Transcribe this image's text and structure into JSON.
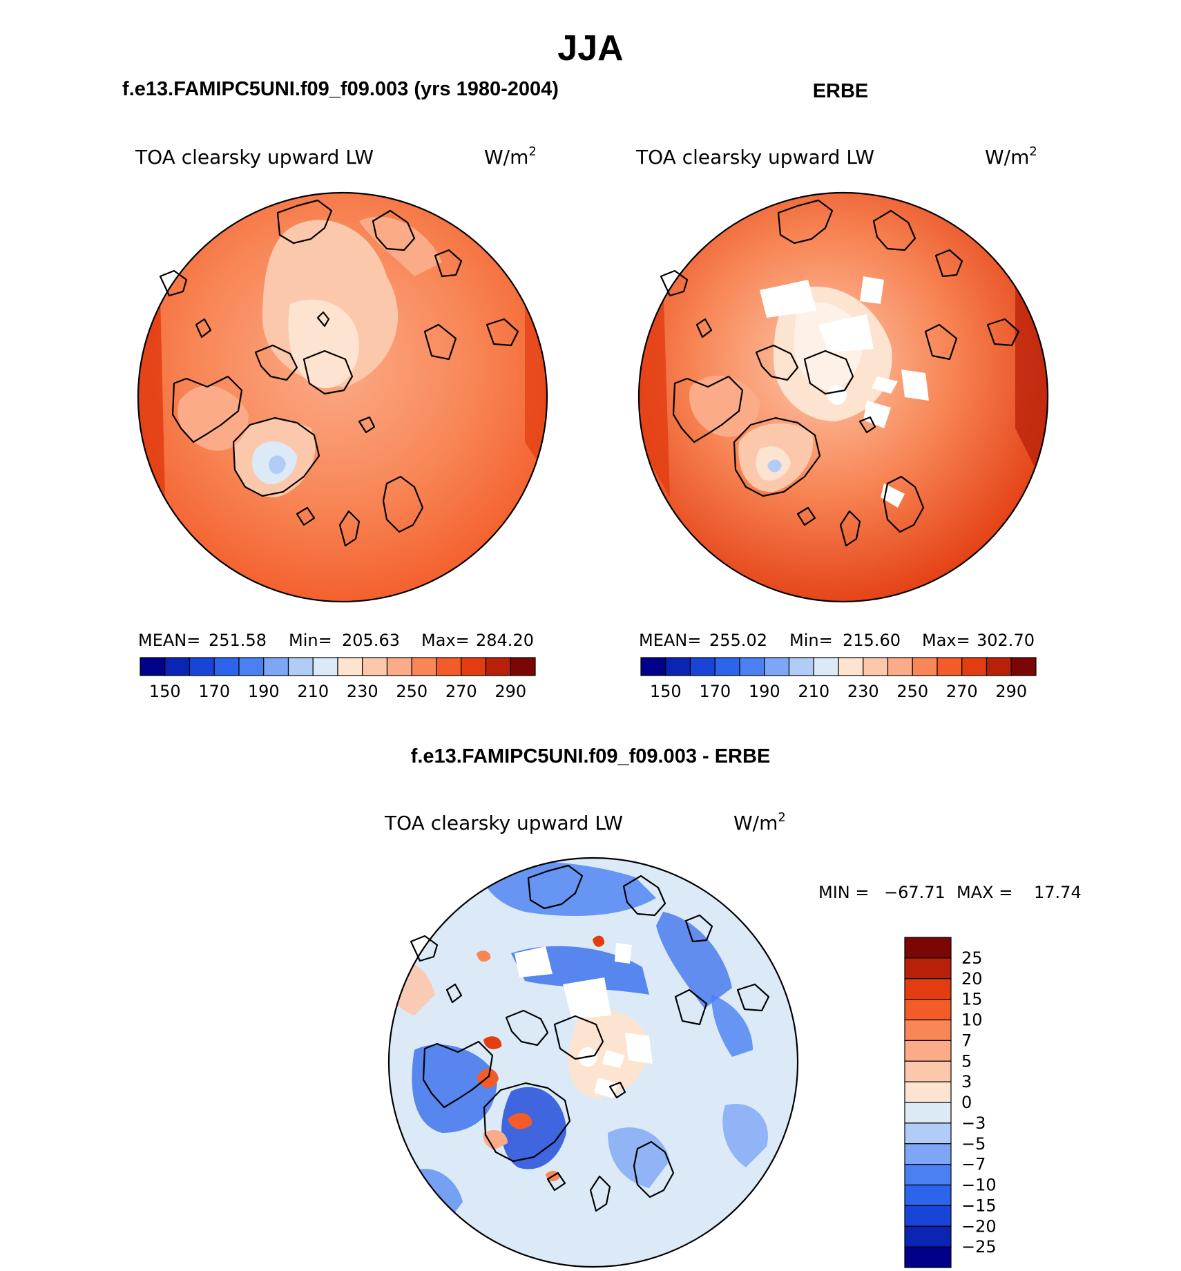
{
  "figure": {
    "title": "JJA",
    "panel_titles": {
      "model": "f.e13.FAMIPC5UNI.f09_f09.003 (yrs 1980-2004)",
      "obs": "ERBE",
      "diff": "f.e13.FAMIPC5UNI.f09_f09.003 - ERBE"
    }
  },
  "chart_data": [
    {
      "type": "contour-map",
      "title": "f.e13.FAMIPC5UNI.f09_f09.003 (yrs 1980-2004)",
      "variable": "TOA clearsky upward LW",
      "units_base": "W/m",
      "units_exp": "2",
      "stats": {
        "mean_label": "MEAN=",
        "mean": "251.58",
        "min_label": "Min=",
        "min": "205.63",
        "max_label": "Max=",
        "max": "284.20"
      },
      "levels": [
        150,
        160,
        170,
        180,
        190,
        200,
        210,
        220,
        230,
        240,
        250,
        260,
        270,
        280,
        290
      ],
      "colorbar_ticks": [
        "150",
        "170",
        "190",
        "210",
        "230",
        "250",
        "270",
        "290"
      ],
      "colors": [
        "#00008a",
        "#0a24b4",
        "#1844d8",
        "#2c64ec",
        "#4a80f2",
        "#7ea6f6",
        "#b2ccf8",
        "#dceaf8",
        "#fde4d0",
        "#fcc8ac",
        "#fbab88",
        "#f88656",
        "#f35b28",
        "#e23c10",
        "#b8200a",
        "#7a0606"
      ]
    },
    {
      "type": "contour-map",
      "title": "ERBE",
      "variable": "TOA clearsky upward LW",
      "units_base": "W/m",
      "units_exp": "2",
      "stats": {
        "mean_label": "MEAN=",
        "mean": "255.02",
        "min_label": "Min=",
        "min": "215.60",
        "max_label": "Max=",
        "max": "302.70"
      },
      "levels": [
        150,
        160,
        170,
        180,
        190,
        200,
        210,
        220,
        230,
        240,
        250,
        260,
        270,
        280,
        290
      ],
      "colorbar_ticks": [
        "150",
        "170",
        "190",
        "210",
        "230",
        "250",
        "270",
        "290"
      ],
      "colors": [
        "#00008a",
        "#0a24b4",
        "#1844d8",
        "#2c64ec",
        "#4a80f2",
        "#7ea6f6",
        "#b2ccf8",
        "#dceaf8",
        "#fde4d0",
        "#fcc8ac",
        "#fbab88",
        "#f88656",
        "#f35b28",
        "#e23c10",
        "#b8200a",
        "#7a0606"
      ]
    },
    {
      "type": "contour-map",
      "title": "f.e13.FAMIPC5UNI.f09_f09.003 - ERBE",
      "variable": "TOA clearsky upward LW",
      "units_base": "W/m",
      "units_exp": "2",
      "stats": {
        "min_label": "MIN =",
        "min": "−67.71",
        "max_label": "MAX =",
        "max": "17.74"
      },
      "levels": [
        25,
        20,
        15,
        10,
        7,
        5,
        3,
        0,
        -3,
        -5,
        -7,
        -10,
        -15,
        -20,
        -25
      ],
      "colorbar_ticks": [
        "25",
        "20",
        "15",
        "10",
        "7",
        "5",
        "3",
        "0",
        "−3",
        "−5",
        "−7",
        "−10",
        "−15",
        "−20",
        "−25"
      ],
      "colors": [
        "#7a0606",
        "#b8200a",
        "#e23c10",
        "#f35b28",
        "#f88656",
        "#fbab88",
        "#fcc8ac",
        "#fde4d0",
        "#dceaf8",
        "#b2ccf8",
        "#7ea6f6",
        "#4a80f2",
        "#2c64ec",
        "#1844d8",
        "#0a24b4",
        "#00008a"
      ]
    }
  ]
}
